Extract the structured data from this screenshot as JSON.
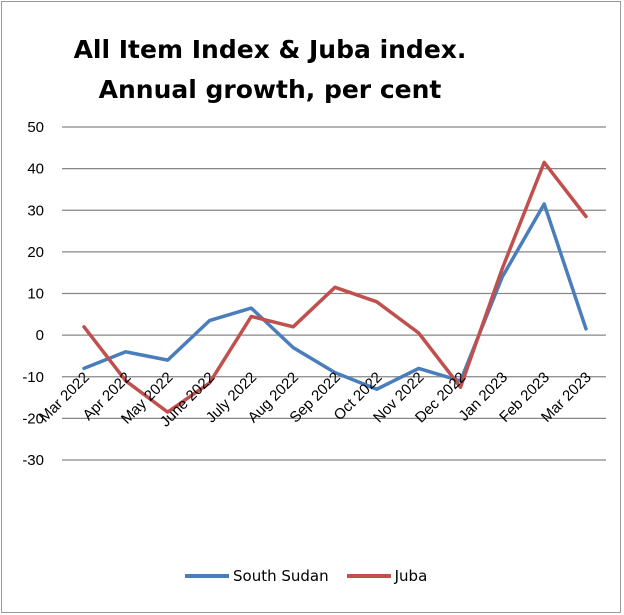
{
  "chart_data": {
    "type": "line",
    "title_lines": [
      "All Item Index & Juba  index.",
      "Annual growth, per cent"
    ],
    "categories": [
      "Mar 2022",
      "Apr 2022",
      "May 2022",
      "June 2022",
      "July 2022",
      "Aug 2022",
      "Sep 2022",
      "Oct 2022",
      "Nov 2022",
      "Dec 2022",
      "Jan 2023",
      "Feb 2023",
      "Mar 2023"
    ],
    "series": [
      {
        "name": "South Sudan",
        "color": "#4a7ebb",
        "values": [
          -8,
          -4,
          -6,
          3.5,
          6.5,
          -3,
          -9,
          -13,
          -8,
          -11,
          14,
          31.5,
          1.5
        ]
      },
      {
        "name": "Juba",
        "color": "#c0504d",
        "values": [
          2,
          -11,
          -18.5,
          -11.5,
          4.5,
          2,
          11.5,
          8,
          0.5,
          -12.5,
          16,
          41.5,
          28.5
        ]
      }
    ],
    "yticks": [
      50,
      40,
      30,
      20,
      10,
      0,
      -10,
      -20,
      -30
    ],
    "ylim": [
      -30,
      50
    ],
    "grid": true,
    "legend_position": "bottom"
  }
}
